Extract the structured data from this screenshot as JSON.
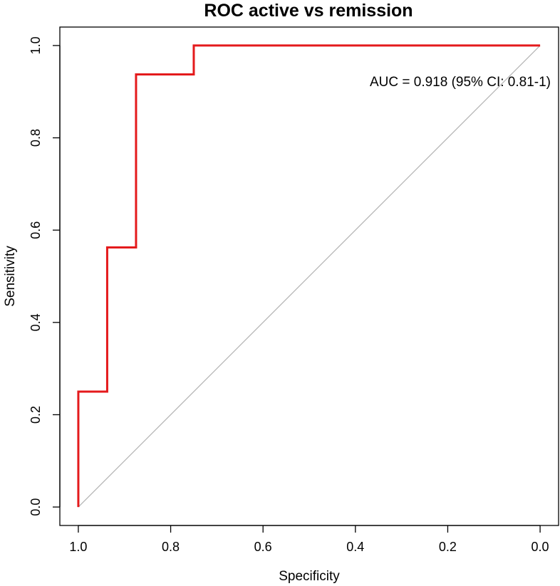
{
  "chart_data": {
    "type": "line",
    "title": "ROC active vs remission",
    "xlabel": "Specificity",
    "ylabel": "Sensitivity",
    "xlim": [
      1.04,
      -0.04
    ],
    "ylim": [
      -0.04,
      1.04
    ],
    "x_reversed": true,
    "grid": false,
    "xticks": [
      1.0,
      0.8,
      0.6,
      0.4,
      0.2,
      0.0
    ],
    "xtick_labels": [
      "1.0",
      "0.8",
      "0.6",
      "0.4",
      "0.2",
      "0.0"
    ],
    "yticks": [
      0.0,
      0.2,
      0.4,
      0.6,
      0.8,
      1.0
    ],
    "ytick_labels": [
      "0.0",
      "0.2",
      "0.4",
      "0.6",
      "0.8",
      "1.0"
    ],
    "annotation": "AUC = 0.918 (95% CI: 0.81-1)",
    "series": [
      {
        "color": "#e41a1c",
        "x": [
          1.0,
          1.0,
          0.9375,
          0.9375,
          0.875,
          0.875,
          0.75,
          0.75,
          0.0
        ],
        "y": [
          0.0,
          0.25,
          0.25,
          0.5625,
          0.5625,
          0.9375,
          0.9375,
          1.0,
          1.0
        ]
      }
    ],
    "reference_line": {
      "x": [
        1.0,
        0.0
      ],
      "y": [
        0.0,
        1.0
      ],
      "color": "#b3b3b3"
    }
  }
}
